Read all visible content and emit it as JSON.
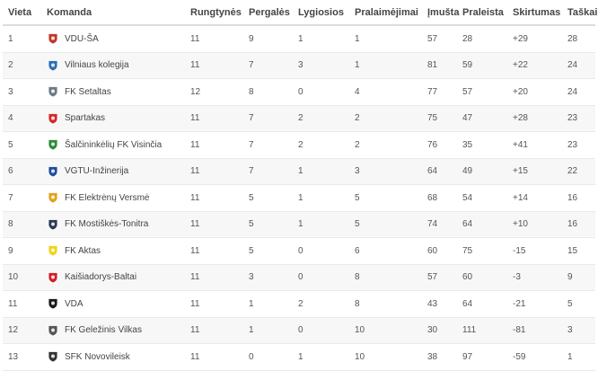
{
  "headers": [
    "Vieta",
    "Komanda",
    "Rungtynės",
    "Pergalės",
    "Lygiosios",
    "Pralaimėjimai",
    "Įmušta",
    "Praleista",
    "Skirtumas",
    "Taškai"
  ],
  "rows": [
    {
      "pos": "1",
      "team": "VDU-ŠA",
      "played": "11",
      "won": "9",
      "draw": "1",
      "lost": "1",
      "gf": "57",
      "ga": "28",
      "diff": "+29",
      "pts": "28",
      "logo": "vdu-sa-logo-icon",
      "color": "#c0392b"
    },
    {
      "pos": "2",
      "team": "Vilniaus kolegija",
      "played": "11",
      "won": "7",
      "draw": "3",
      "lost": "1",
      "gf": "81",
      "ga": "59",
      "diff": "+22",
      "pts": "24",
      "logo": "vilniaus-kolegija-logo-icon",
      "color": "#2c6fb7"
    },
    {
      "pos": "3",
      "team": "FK Setaltas",
      "played": "12",
      "won": "8",
      "draw": "0",
      "lost": "4",
      "gf": "77",
      "ga": "57",
      "diff": "+20",
      "pts": "24",
      "logo": "fk-setaltas-logo-icon",
      "color": "#6d7a86"
    },
    {
      "pos": "4",
      "team": "Spartakas",
      "played": "11",
      "won": "7",
      "draw": "2",
      "lost": "2",
      "gf": "75",
      "ga": "47",
      "diff": "+28",
      "pts": "23",
      "logo": "spartakas-logo-icon",
      "color": "#d62828"
    },
    {
      "pos": "5",
      "team": "Šalčininkėlių FK Visinčia",
      "played": "11",
      "won": "7",
      "draw": "2",
      "lost": "2",
      "gf": "76",
      "ga": "35",
      "diff": "+41",
      "pts": "23",
      "logo": "visincia-logo-icon",
      "color": "#2e8b3a"
    },
    {
      "pos": "6",
      "team": "VGTU-Inžinerija",
      "played": "11",
      "won": "7",
      "draw": "1",
      "lost": "3",
      "gf": "64",
      "ga": "49",
      "diff": "+15",
      "pts": "22",
      "logo": "vgtu-logo-icon",
      "color": "#1f4e9c"
    },
    {
      "pos": "7",
      "team": "FK Elektrėnų Versmė",
      "played": "11",
      "won": "5",
      "draw": "1",
      "lost": "5",
      "gf": "68",
      "ga": "54",
      "diff": "+14",
      "pts": "16",
      "logo": "elektrenu-versme-logo-icon",
      "color": "#e0a21a"
    },
    {
      "pos": "8",
      "team": "FK Mostiškės-Tonitra",
      "played": "11",
      "won": "5",
      "draw": "1",
      "lost": "5",
      "gf": "74",
      "ga": "64",
      "diff": "+10",
      "pts": "16",
      "logo": "mostiskes-logo-icon",
      "color": "#2b3a55"
    },
    {
      "pos": "9",
      "team": "FK Aktas",
      "played": "11",
      "won": "5",
      "draw": "0",
      "lost": "6",
      "gf": "60",
      "ga": "75",
      "diff": "-15",
      "pts": "15",
      "logo": "fk-aktas-logo-icon",
      "color": "#f2d31b"
    },
    {
      "pos": "10",
      "team": "Kaišiadorys-Baltai",
      "played": "11",
      "won": "3",
      "draw": "0",
      "lost": "8",
      "gf": "57",
      "ga": "60",
      "diff": "-3",
      "pts": "9",
      "logo": "kaisiadorys-logo-icon",
      "color": "#d21f2b"
    },
    {
      "pos": "11",
      "team": "VDA",
      "played": "11",
      "won": "1",
      "draw": "2",
      "lost": "8",
      "gf": "43",
      "ga": "64",
      "diff": "-21",
      "pts": "5",
      "logo": "vda-logo-icon",
      "color": "#1a1a1a"
    },
    {
      "pos": "12",
      "team": "FK Geležinis Vilkas",
      "played": "11",
      "won": "1",
      "draw": "0",
      "lost": "10",
      "gf": "30",
      "ga": "111",
      "diff": "-81",
      "pts": "3",
      "logo": "gelezinis-vilkas-logo-icon",
      "color": "#555555"
    },
    {
      "pos": "13",
      "team": "SFK Novovileisk",
      "played": "11",
      "won": "0",
      "draw": "1",
      "lost": "10",
      "gf": "38",
      "ga": "97",
      "diff": "-59",
      "pts": "1",
      "logo": "novovileisk-logo-icon",
      "color": "#333333"
    }
  ]
}
